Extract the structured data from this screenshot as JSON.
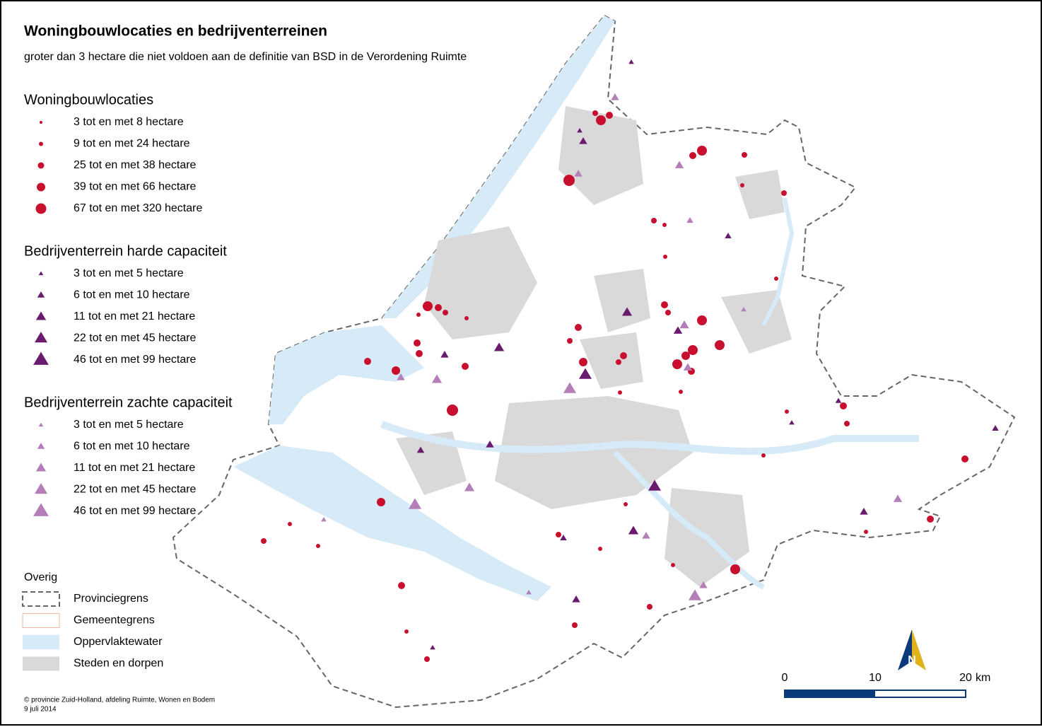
{
  "title": "Woningbouwlocaties en bedrijventerreinen",
  "subtitle": "groter dan 3 hectare die niet voldoen aan de definitie van BSD in de Verordening Ruimte",
  "legend": {
    "groups": [
      {
        "title": "Woningbouwlocaties",
        "items": [
          "3 tot en met 8 hectare",
          "9 tot en met 24 hectare",
          "25 tot en met 38 hectare",
          "39 tot en met 66 hectare",
          "67 tot en met 320 hectare"
        ]
      },
      {
        "title": "Bedrijventerrein harde capaciteit",
        "items": [
          "3 tot en met 5 hectare",
          "6 tot en met 10 hectare",
          "11 tot en met 21 hectare",
          "22 tot en met 45 hectare",
          "46 tot en met 99 hectare"
        ]
      },
      {
        "title": "Bedrijventerrein zachte capaciteit",
        "items": [
          "3 tot en met 5 hectare",
          "6 tot en met 10 hectare",
          "11 tot en met 21 hectare",
          "22 tot en met 45 hectare",
          "46 tot en met 99 hectare"
        ]
      }
    ],
    "other": {
      "title": "Overig",
      "items": [
        "Provinciegrens",
        "Gemeentegrens",
        "Oppervlaktewater",
        "Steden en dorpen"
      ]
    }
  },
  "scale_bar": {
    "labels": [
      "0",
      "10",
      "20"
    ],
    "unit": "km"
  },
  "north": "N",
  "credit": [
    "© provincie Zuid-Holland, afdeling Ruimte, Wonen en Bodem",
    "9 juli 2014"
  ]
}
